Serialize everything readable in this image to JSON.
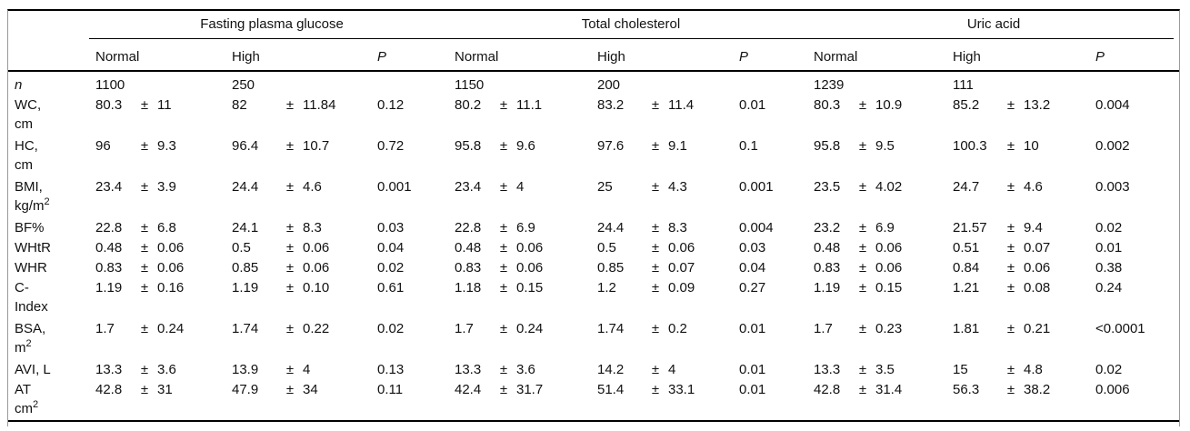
{
  "table": {
    "pm_symbol": "±",
    "groups": [
      {
        "label": "Fasting plasma glucose"
      },
      {
        "label": "Total cholesterol"
      },
      {
        "label": "Uric acid"
      }
    ],
    "col_headers": {
      "normal": "Normal",
      "high": "High",
      "p": "P"
    },
    "rows": [
      {
        "label": [
          {
            "text": "n"
          }
        ],
        "italic": true,
        "groups": [
          {
            "normal": {
              "v": "1100"
            },
            "high": {
              "v": "250"
            },
            "p": ""
          },
          {
            "normal": {
              "v": "1150"
            },
            "high": {
              "v": "200"
            },
            "p": ""
          },
          {
            "normal": {
              "v": "1239"
            },
            "high": {
              "v": "111"
            },
            "p": ""
          }
        ]
      },
      {
        "label": [
          {
            "text": "WC,"
          },
          {
            "text": "cm"
          }
        ],
        "groups": [
          {
            "normal": {
              "v": "80.3",
              "sd": "11"
            },
            "high": {
              "v": "82",
              "sd": "11.84"
            },
            "p": "0.12"
          },
          {
            "normal": {
              "v": "80.2",
              "sd": "11.1"
            },
            "high": {
              "v": "83.2",
              "sd": "11.4"
            },
            "p": "0.01"
          },
          {
            "normal": {
              "v": "80.3",
              "sd": "10.9"
            },
            "high": {
              "v": "85.2",
              "sd": "13.2"
            },
            "p": "0.004"
          }
        ]
      },
      {
        "label": [
          {
            "text": "HC,"
          },
          {
            "text": "cm"
          }
        ],
        "groups": [
          {
            "normal": {
              "v": "96",
              "sd": "9.3"
            },
            "high": {
              "v": "96.4",
              "sd": "10.7"
            },
            "p": "0.72"
          },
          {
            "normal": {
              "v": "95.8",
              "sd": "9.6"
            },
            "high": {
              "v": "97.6",
              "sd": "9.1"
            },
            "p": "0.1"
          },
          {
            "normal": {
              "v": "95.8",
              "sd": "9.5"
            },
            "high": {
              "v": "100.3",
              "sd": "10"
            },
            "p": "0.002"
          }
        ]
      },
      {
        "label": [
          {
            "text": "BMI,"
          },
          {
            "text": "kg/m",
            "sup": "2"
          }
        ],
        "groups": [
          {
            "normal": {
              "v": "23.4",
              "sd": "3.9"
            },
            "high": {
              "v": "24.4",
              "sd": "4.6"
            },
            "p": "0.001"
          },
          {
            "normal": {
              "v": "23.4",
              "sd": "4"
            },
            "high": {
              "v": "25",
              "sd": "4.3"
            },
            "p": "0.001"
          },
          {
            "normal": {
              "v": "23.5",
              "sd": "4.02"
            },
            "high": {
              "v": "24.7",
              "sd": "4.6"
            },
            "p": "0.003"
          }
        ]
      },
      {
        "label": [
          {
            "text": "BF%"
          }
        ],
        "groups": [
          {
            "normal": {
              "v": "22.8",
              "sd": "6.8"
            },
            "high": {
              "v": "24.1",
              "sd": "8.3"
            },
            "p": "0.03"
          },
          {
            "normal": {
              "v": "22.8",
              "sd": "6.9"
            },
            "high": {
              "v": "24.4",
              "sd": "8.3"
            },
            "p": "0.004"
          },
          {
            "normal": {
              "v": "23.2",
              "sd": "6.9"
            },
            "high": {
              "v": "21.57",
              "sd": "9.4"
            },
            "p": "0.02"
          }
        ]
      },
      {
        "label": [
          {
            "text": "WHtR"
          }
        ],
        "groups": [
          {
            "normal": {
              "v": "0.48",
              "sd": "0.06"
            },
            "high": {
              "v": "0.5",
              "sd": "0.06"
            },
            "p": "0.04"
          },
          {
            "normal": {
              "v": "0.48",
              "sd": "0.06"
            },
            "high": {
              "v": "0.5",
              "sd": "0.06"
            },
            "p": "0.03"
          },
          {
            "normal": {
              "v": "0.48",
              "sd": "0.06"
            },
            "high": {
              "v": "0.51",
              "sd": "0.07"
            },
            "p": "0.01"
          }
        ]
      },
      {
        "label": [
          {
            "text": "WHR"
          }
        ],
        "groups": [
          {
            "normal": {
              "v": "0.83",
              "sd": "0.06"
            },
            "high": {
              "v": "0.85",
              "sd": "0.06"
            },
            "p": "0.02"
          },
          {
            "normal": {
              "v": "0.83",
              "sd": "0.06"
            },
            "high": {
              "v": "0.85",
              "sd": "0.07"
            },
            "p": "0.04"
          },
          {
            "normal": {
              "v": "0.83",
              "sd": "0.06"
            },
            "high": {
              "v": "0.84",
              "sd": "0.06"
            },
            "p": "0.38"
          }
        ]
      },
      {
        "label": [
          {
            "text": "C-"
          },
          {
            "text": "Index"
          }
        ],
        "groups": [
          {
            "normal": {
              "v": "1.19",
              "sd": "0.16"
            },
            "high": {
              "v": "1.19",
              "sd": "0.10"
            },
            "p": "0.61"
          },
          {
            "normal": {
              "v": "1.18",
              "sd": "0.15"
            },
            "high": {
              "v": "1.2",
              "sd": "0.09"
            },
            "p": "0.27"
          },
          {
            "normal": {
              "v": "1.19",
              "sd": "0.15"
            },
            "high": {
              "v": "1.21",
              "sd": "0.08"
            },
            "p": "0.24"
          }
        ]
      },
      {
        "label": [
          {
            "text": "BSA,"
          },
          {
            "text": "m",
            "sup": "2"
          }
        ],
        "groups": [
          {
            "normal": {
              "v": "1.7",
              "sd": "0.24"
            },
            "high": {
              "v": "1.74",
              "sd": "0.22"
            },
            "p": "0.02"
          },
          {
            "normal": {
              "v": "1.7",
              "sd": "0.24"
            },
            "high": {
              "v": "1.74",
              "sd": "0.2"
            },
            "p": "0.01"
          },
          {
            "normal": {
              "v": "1.7",
              "sd": "0.23"
            },
            "high": {
              "v": "1.81",
              "sd": "0.21"
            },
            "p": "<0.0001"
          }
        ]
      },
      {
        "label": [
          {
            "text": "AVI, L"
          }
        ],
        "groups": [
          {
            "normal": {
              "v": "13.3",
              "sd": "3.6"
            },
            "high": {
              "v": "13.9",
              "sd": "4"
            },
            "p": "0.13"
          },
          {
            "normal": {
              "v": "13.3",
              "sd": "3.6"
            },
            "high": {
              "v": "14.2",
              "sd": "4"
            },
            "p": "0.01"
          },
          {
            "normal": {
              "v": "13.3",
              "sd": "3.5"
            },
            "high": {
              "v": "15",
              "sd": "4.8"
            },
            "p": "0.02"
          }
        ]
      },
      {
        "label": [
          {
            "text": "AT"
          },
          {
            "text": "cm",
            "sup": "2"
          }
        ],
        "groups": [
          {
            "normal": {
              "v": "42.8",
              "sd": "31"
            },
            "high": {
              "v": "47.9",
              "sd": "34"
            },
            "p": "0.11"
          },
          {
            "normal": {
              "v": "42.4",
              "sd": "31.7"
            },
            "high": {
              "v": "51.4",
              "sd": "33.1"
            },
            "p": "0.01"
          },
          {
            "normal": {
              "v": "42.8",
              "sd": "31.4"
            },
            "high": {
              "v": "56.3",
              "sd": "38.2"
            },
            "p": "0.006"
          }
        ]
      }
    ]
  }
}
